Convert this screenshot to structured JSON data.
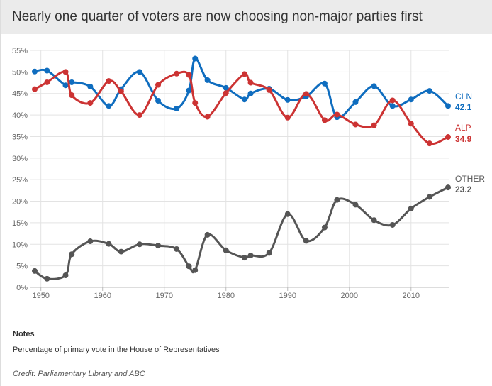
{
  "title": "Nearly one quarter of voters are now choosing non-major parties first",
  "chart_data": {
    "type": "line",
    "title": "Nearly one quarter of voters are now choosing non-major parties first",
    "xlabel": "",
    "ylabel": "",
    "x": [
      1949,
      1951,
      1954,
      1955,
      1958,
      1961,
      1963,
      1966,
      1969,
      1972,
      1974,
      1975,
      1977,
      1980,
      1983,
      1984,
      1987,
      1990,
      1993,
      1996,
      1998,
      2001,
      2004,
      2007,
      2010,
      2013,
      2016
    ],
    "xlim": [
      1949,
      2016
    ],
    "ylim": [
      0,
      55
    ],
    "x_ticks": [
      "1950",
      "1960",
      "1970",
      "1980",
      "1990",
      "2000",
      "2010"
    ],
    "y_ticks": [
      "0%",
      "5%",
      "10%",
      "15%",
      "20%",
      "25%",
      "30%",
      "35%",
      "40%",
      "45%",
      "50%",
      "55%"
    ],
    "grid": true,
    "legend": "end-labels",
    "series": [
      {
        "name": "CLN",
        "color": "#0f6dbf",
        "end_label": "42.1",
        "values": [
          50.1,
          50.3,
          46.9,
          47.6,
          46.6,
          42.1,
          46.0,
          50.0,
          43.3,
          41.5,
          45.7,
          53.1,
          48.1,
          46.3,
          43.6,
          45.0,
          46.1,
          43.5,
          44.3,
          47.3,
          39.5,
          43.0,
          46.7,
          42.1,
          43.6,
          45.6,
          42.1
        ]
      },
      {
        "name": "ALP",
        "color": "#cc3333",
        "end_label": "34.9",
        "values": [
          46.0,
          47.6,
          50.0,
          44.6,
          42.8,
          47.9,
          45.5,
          40.0,
          47.0,
          49.6,
          49.3,
          42.8,
          39.6,
          45.1,
          49.5,
          47.5,
          45.8,
          39.4,
          44.9,
          38.8,
          40.1,
          37.8,
          37.6,
          43.4,
          38.0,
          33.4,
          34.9
        ]
      },
      {
        "name": "OTHER",
        "color": "#555555",
        "end_label": "23.2",
        "values": [
          3.8,
          2.0,
          2.8,
          7.7,
          10.7,
          10.1,
          8.3,
          10.0,
          9.7,
          8.9,
          4.9,
          4.0,
          12.2,
          8.6,
          6.9,
          7.4,
          8.0,
          17.0,
          10.8,
          13.9,
          20.3,
          19.2,
          15.6,
          14.5,
          18.3,
          21.0,
          23.2
        ]
      }
    ]
  },
  "notes_heading": "Notes",
  "notes": "Percentage of primary vote in the House of Representatives",
  "credit": "Credit: Parliamentary Library and ABC"
}
